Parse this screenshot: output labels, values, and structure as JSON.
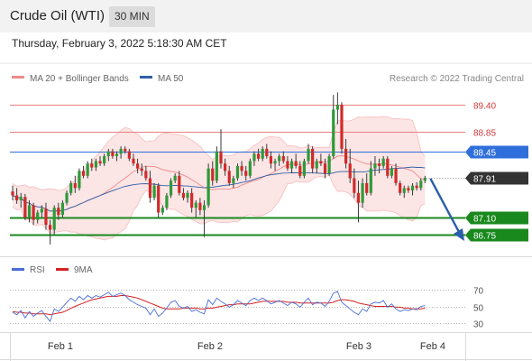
{
  "header": {
    "title": "Crude Oil (WTI)",
    "interval": "30 MIN",
    "timestamp": "Thursday, February 3, 2022 5:18:30 AM CET"
  },
  "chart_data": [
    {
      "type": "candlestick",
      "legend": [
        {
          "name": "MA 20 + Bollinger Bands",
          "color": "#f08a8a"
        },
        {
          "name": "MA 50",
          "color": "#2f5fa7"
        }
      ],
      "copyright": "Research © 2022 Trading Central",
      "ylim": [
        86.4,
        89.8
      ],
      "levels": [
        {
          "value": 89.4,
          "label": "89.40",
          "style": "red-line"
        },
        {
          "value": 88.85,
          "label": "88.85",
          "style": "red-line"
        },
        {
          "value": 88.45,
          "label": "88.45",
          "style": "blue-box"
        },
        {
          "value": 87.91,
          "label": "87.91",
          "style": "current-price"
        },
        {
          "value": 87.1,
          "label": "87.10",
          "style": "green-box"
        },
        {
          "value": 86.75,
          "label": "86.75",
          "style": "green-box"
        }
      ],
      "colors": {
        "up": "#2e9a3a",
        "down": "#d02a2a",
        "resistance": "#e88080",
        "pivot": "#2f6fdc",
        "support": "#19891e",
        "current": "#333333",
        "band": "#fbdcdc"
      },
      "projection": {
        "from": 87.91,
        "to": 86.75,
        "color": "#2a5ea8"
      },
      "x_ticks": [
        "Feb 1",
        "Feb 2",
        "Feb 3",
        "Feb 4"
      ],
      "bars": [
        [
          87.63,
          87.75,
          87.45,
          87.55
        ],
        [
          87.55,
          87.7,
          87.38,
          87.45
        ],
        [
          87.45,
          87.6,
          87.3,
          87.52
        ],
        [
          87.52,
          87.58,
          87.05,
          87.1
        ],
        [
          87.1,
          87.45,
          87.0,
          87.35
        ],
        [
          87.35,
          87.4,
          86.95,
          87.05
        ],
        [
          87.05,
          87.25,
          86.98,
          87.2
        ],
        [
          87.2,
          87.35,
          87.1,
          87.28
        ],
        [
          87.28,
          87.4,
          86.85,
          86.95
        ],
        [
          86.95,
          87.05,
          86.55,
          86.85
        ],
        [
          86.85,
          87.35,
          86.75,
          87.3
        ],
        [
          87.3,
          87.4,
          87.05,
          87.15
        ],
        [
          87.15,
          87.45,
          87.1,
          87.4
        ],
        [
          87.4,
          87.65,
          87.35,
          87.6
        ],
        [
          87.6,
          87.85,
          87.55,
          87.8
        ],
        [
          87.8,
          87.95,
          87.6,
          87.7
        ],
        [
          87.7,
          88.1,
          87.65,
          88.05
        ],
        [
          88.05,
          88.15,
          87.9,
          87.95
        ],
        [
          87.95,
          88.25,
          87.9,
          88.2
        ],
        [
          88.2,
          88.3,
          88.05,
          88.12
        ],
        [
          88.12,
          88.3,
          88.05,
          88.25
        ],
        [
          88.25,
          88.35,
          88.15,
          88.2
        ],
        [
          88.2,
          88.4,
          88.15,
          88.35
        ],
        [
          88.35,
          88.5,
          88.25,
          88.45
        ],
        [
          88.45,
          88.5,
          88.3,
          88.35
        ],
        [
          88.35,
          88.45,
          88.25,
          88.4
        ],
        [
          88.4,
          88.55,
          88.3,
          88.5
        ],
        [
          88.5,
          88.55,
          88.4,
          88.45
        ],
        [
          88.45,
          88.5,
          88.25,
          88.3
        ],
        [
          88.3,
          88.4,
          88.15,
          88.2
        ],
        [
          88.2,
          88.3,
          88.0,
          88.1
        ],
        [
          88.1,
          88.2,
          87.95,
          88.05
        ],
        [
          88.05,
          88.15,
          87.85,
          87.9
        ],
        [
          87.9,
          88.05,
          87.4,
          87.5
        ],
        [
          87.5,
          87.8,
          87.45,
          87.75
        ],
        [
          87.75,
          87.8,
          87.1,
          87.2
        ],
        [
          87.2,
          87.35,
          87.15,
          87.3
        ],
        [
          87.3,
          87.6,
          87.25,
          87.55
        ],
        [
          87.55,
          87.9,
          87.5,
          87.85
        ],
        [
          87.85,
          88.0,
          87.8,
          87.95
        ],
        [
          87.95,
          88.05,
          87.55,
          87.6
        ],
        [
          87.6,
          87.7,
          87.45,
          87.5
        ],
        [
          87.5,
          87.65,
          87.4,
          87.6
        ],
        [
          87.6,
          87.7,
          87.2,
          87.3
        ],
        [
          87.3,
          87.45,
          87.1,
          87.4
        ],
        [
          87.4,
          87.5,
          87.15,
          87.25
        ],
        [
          87.25,
          87.45,
          86.7,
          87.35
        ],
        [
          87.35,
          88.2,
          87.3,
          88.1
        ],
        [
          88.1,
          88.25,
          87.75,
          87.85
        ],
        [
          87.85,
          88.55,
          87.8,
          88.45
        ],
        [
          88.45,
          88.9,
          88.1,
          88.2
        ],
        [
          88.2,
          88.3,
          87.95,
          88.05
        ],
        [
          88.05,
          88.15,
          87.75,
          87.8
        ],
        [
          87.8,
          87.95,
          87.7,
          87.9
        ],
        [
          87.9,
          88.2,
          87.85,
          88.15
        ],
        [
          88.15,
          88.25,
          87.95,
          88.05
        ],
        [
          88.05,
          88.15,
          87.85,
          87.95
        ],
        [
          87.95,
          88.3,
          87.9,
          88.25
        ],
        [
          88.25,
          88.45,
          88.15,
          88.4
        ],
        [
          88.4,
          88.5,
          88.25,
          88.3
        ],
        [
          88.3,
          88.55,
          88.25,
          88.5
        ],
        [
          88.5,
          88.6,
          88.3,
          88.35
        ],
        [
          88.35,
          88.45,
          88.1,
          88.2
        ],
        [
          88.2,
          88.3,
          88.05,
          88.25
        ],
        [
          88.25,
          88.4,
          88.15,
          88.35
        ],
        [
          88.35,
          88.45,
          88.2,
          88.25
        ],
        [
          88.25,
          88.35,
          88.05,
          88.1
        ],
        [
          88.1,
          88.3,
          88.0,
          88.25
        ],
        [
          88.25,
          88.4,
          88.1,
          88.15
        ],
        [
          88.15,
          88.25,
          87.9,
          87.95
        ],
        [
          87.95,
          88.3,
          87.9,
          88.25
        ],
        [
          88.25,
          88.6,
          88.2,
          88.5
        ],
        [
          88.5,
          88.55,
          88.0,
          88.1
        ],
        [
          88.1,
          88.3,
          88.0,
          88.25
        ],
        [
          88.25,
          88.4,
          88.15,
          88.2
        ],
        [
          88.2,
          88.3,
          87.9,
          88.0
        ],
        [
          88.0,
          88.4,
          87.95,
          88.35
        ],
        [
          88.35,
          89.6,
          88.3,
          89.3
        ],
        [
          89.3,
          89.65,
          89.0,
          89.4
        ],
        [
          89.4,
          89.45,
          88.4,
          88.5
        ],
        [
          88.5,
          88.7,
          88.1,
          88.2
        ],
        [
          88.2,
          88.5,
          87.8,
          87.9
        ],
        [
          87.9,
          88.1,
          87.5,
          87.6
        ],
        [
          87.6,
          87.85,
          87.0,
          87.4
        ],
        [
          87.4,
          87.9,
          87.3,
          87.8
        ],
        [
          87.8,
          88.0,
          87.55,
          87.6
        ],
        [
          87.6,
          88.25,
          87.55,
          88.1
        ],
        [
          88.1,
          88.35,
          87.95,
          88.2
        ],
        [
          88.2,
          88.3,
          88.0,
          88.15
        ],
        [
          88.15,
          88.35,
          88.1,
          88.3
        ],
        [
          88.3,
          88.35,
          87.9,
          87.95
        ],
        [
          87.95,
          88.15,
          87.9,
          88.1
        ],
        [
          88.1,
          88.2,
          87.75,
          87.8
        ],
        [
          87.8,
          87.85,
          87.55,
          87.6
        ],
        [
          87.6,
          87.75,
          87.5,
          87.7
        ],
        [
          87.7,
          87.75,
          87.6,
          87.65
        ],
        [
          87.65,
          87.8,
          87.55,
          87.75
        ],
        [
          87.75,
          87.82,
          87.65,
          87.7
        ],
        [
          87.7,
          87.9,
          87.65,
          87.85
        ],
        [
          87.85,
          87.95,
          87.8,
          87.91
        ]
      ]
    },
    {
      "type": "line",
      "series": [
        {
          "name": "RSI",
          "color": "#4a6fd6"
        },
        {
          "name": "9MA",
          "color": "#d62222"
        }
      ],
      "y_ticks": [
        70,
        50,
        30
      ],
      "ylim": [
        20,
        80
      ],
      "rsi": [
        43,
        40,
        45,
        36,
        44,
        38,
        42,
        45,
        38,
        32,
        47,
        44,
        49,
        55,
        60,
        56,
        62,
        58,
        63,
        60,
        63,
        61,
        64,
        67,
        62,
        64,
        66,
        63,
        58,
        55,
        52,
        50,
        48,
        40,
        47,
        38,
        42,
        48,
        55,
        57,
        50,
        48,
        50,
        44,
        46,
        43,
        41,
        58,
        52,
        60,
        56,
        53,
        49,
        52,
        57,
        54,
        51,
        57,
        60,
        57,
        60,
        57,
        53,
        55,
        57,
        54,
        51,
        55,
        53,
        49,
        55,
        60,
        52,
        55,
        54,
        50,
        56,
        66,
        68,
        55,
        51,
        47,
        43,
        40,
        47,
        44,
        53,
        55,
        54,
        57,
        49,
        53,
        47,
        44,
        46,
        45,
        47,
        46,
        50,
        51
      ],
      "ma9": [
        44,
        43,
        43,
        42,
        42,
        41,
        41,
        41,
        41,
        40,
        41,
        42,
        43,
        45,
        48,
        50,
        52,
        54,
        56,
        58,
        59,
        60,
        61,
        62,
        62,
        62,
        63,
        63,
        62,
        61,
        60,
        58,
        56,
        54,
        52,
        50,
        48,
        47,
        47,
        47,
        47,
        48,
        48,
        48,
        48,
        47,
        47,
        48,
        48,
        49,
        50,
        51,
        52,
        52,
        53,
        53,
        53,
        53,
        54,
        55,
        56,
        56,
        56,
        56,
        56,
        56,
        55,
        55,
        55,
        54,
        54,
        54,
        54,
        54,
        54,
        54,
        54,
        55,
        57,
        58,
        58,
        57,
        56,
        54,
        53,
        52,
        51,
        50,
        50,
        50,
        50,
        50,
        49,
        49,
        48,
        48,
        47,
        47,
        47,
        48
      ]
    }
  ]
}
